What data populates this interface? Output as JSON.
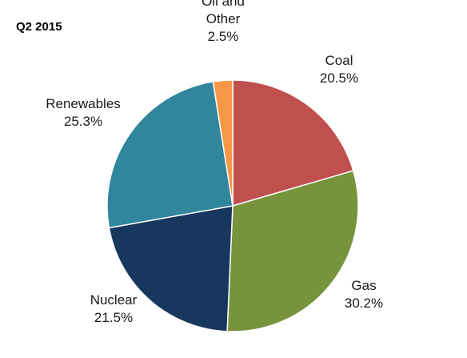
{
  "chart_data": {
    "type": "pie",
    "title": "Q2 2015",
    "slices": [
      {
        "label": "Coal",
        "value": 20.5,
        "display": "20.5%",
        "color": "#C0504D"
      },
      {
        "label": "Gas",
        "value": 30.2,
        "display": "30.2%",
        "color": "#77933C"
      },
      {
        "label": "Nuclear",
        "value": 21.5,
        "display": "21.5%",
        "color": "#17375E"
      },
      {
        "label": "Renewables",
        "value": 25.3,
        "display": "25.3%",
        "color": "#31859C"
      },
      {
        "label": "Oil and Other",
        "label_lines": [
          "Oil and",
          "Other"
        ],
        "value": 2.5,
        "display": "2.5%",
        "color": "#F79646"
      }
    ],
    "start": "12 o'clock",
    "direction": "clockwise",
    "legend": "none",
    "data_labels": "outside slices, category name and percentage"
  }
}
